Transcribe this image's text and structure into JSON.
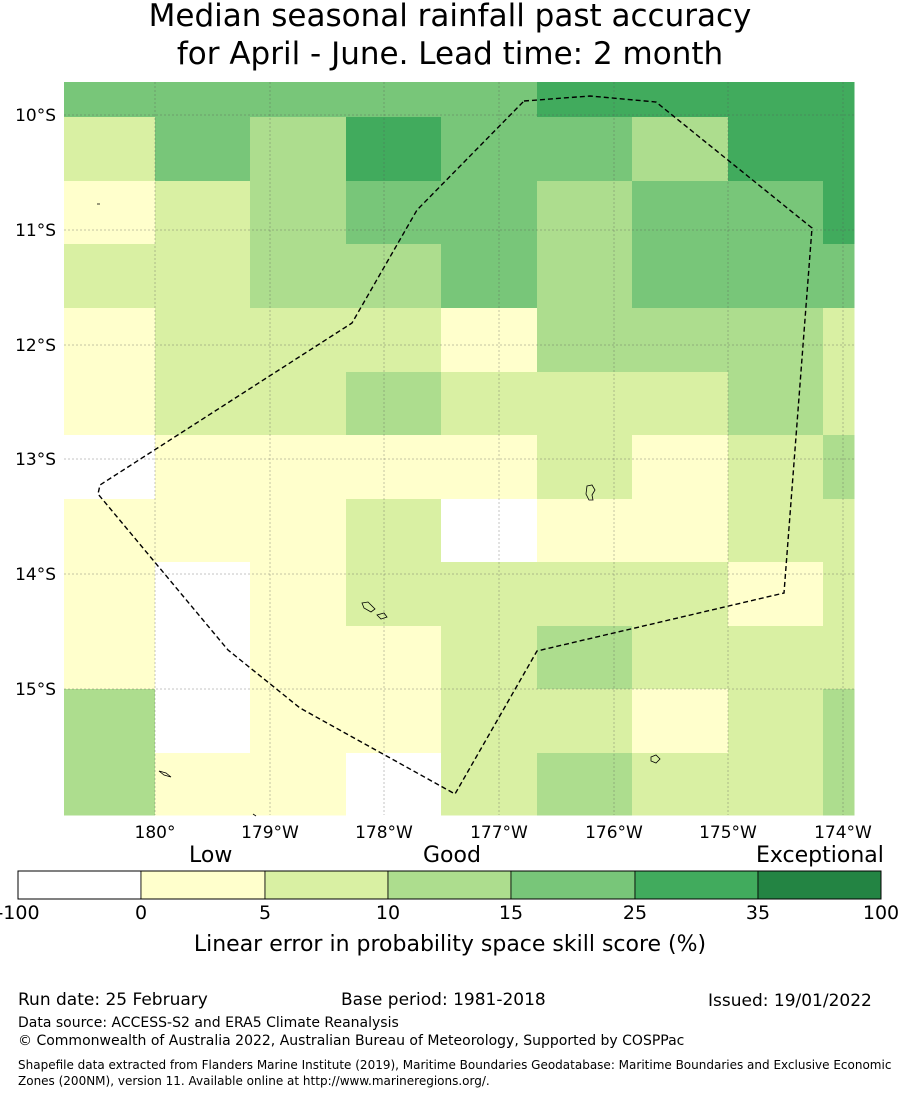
{
  "chart_data": {
    "type": "heatmap",
    "title_line1": "Median seasonal rainfall past accuracy",
    "title_line2": "for April - June. Lead time: 2 month",
    "x_ticks": [
      "180°",
      "179°W",
      "178°W",
      "177°W",
      "176°W",
      "175°W",
      "174°W"
    ],
    "y_ticks": [
      "10°S",
      "11°S",
      "12°S",
      "13°S",
      "14°S",
      "15°S"
    ],
    "grid_note": "Each row lists skill score categories (0 = <0, 1 = 0-5, 2 = 5-10, 3 = 10-15, 4 = 15-25, 5 = 25-35, 6 = 35-100) for the 9 cell columns from west to east; rows run north to south.",
    "cells": [
      [
        4,
        4,
        4,
        4,
        4,
        5,
        5,
        5,
        5
      ],
      [
        2,
        4,
        3,
        5,
        4,
        4,
        3,
        5,
        5
      ],
      [
        1,
        2,
        3,
        4,
        4,
        3,
        4,
        4,
        5
      ],
      [
        2,
        2,
        3,
        3,
        4,
        3,
        4,
        4,
        4
      ],
      [
        1,
        2,
        2,
        2,
        1,
        3,
        3,
        3,
        2
      ],
      [
        1,
        2,
        2,
        3,
        2,
        2,
        2,
        3,
        2
      ],
      [
        0,
        1,
        1,
        1,
        1,
        2,
        1,
        2,
        3
      ],
      [
        1,
        1,
        1,
        2,
        0,
        1,
        1,
        2,
        2
      ],
      [
        1,
        0,
        1,
        2,
        2,
        2,
        2,
        1,
        2
      ],
      [
        1,
        0,
        1,
        1,
        2,
        3,
        2,
        2,
        2
      ],
      [
        3,
        0,
        1,
        1,
        2,
        2,
        1,
        2,
        3
      ],
      [
        3,
        1,
        1,
        0,
        2,
        3,
        2,
        2,
        3
      ]
    ],
    "colorbar": {
      "categories": [
        "Low",
        "Good",
        "Exceptional"
      ],
      "ticks": [
        "-100",
        "0",
        "5",
        "10",
        "15",
        "25",
        "35",
        "100"
      ],
      "colors": [
        "#ffffff",
        "#ffffcc",
        "#d9f0a3",
        "#addd8e",
        "#78c679",
        "#41ab5d",
        "#238443"
      ],
      "label": "Linear error in probability space skill score (%)"
    }
  },
  "footer": {
    "run_date": "Run date: 25 February",
    "base_period": "Base period: 1981-2018",
    "issued": "Issued: 19/01/2022",
    "data_source": "Data source: ACCESS-S2 and ERA5 Climate Reanalysis",
    "copyright": "© Commonwealth of Australia 2022, Australian Bureau of Meteorology, Supported by COSPPac",
    "shapefile": "Shapefile data extracted from Flanders Marine Institute (2019), Maritime Boundaries Geodatabase: Maritime Boundaries and Exclusive Economic Zones (200NM), version 11. Available online at http://www.marineregions.org/."
  }
}
